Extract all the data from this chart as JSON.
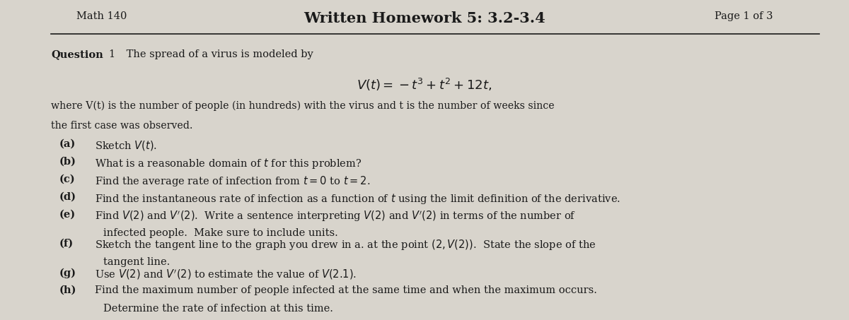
{
  "header_left": "Math 140",
  "header_center": "Written Homework 5: 3.2-3.4",
  "header_right": "Page 1 of 3",
  "bg_color": "#d8d4cc",
  "page_color": "#e8e6e2",
  "text_color": "#1a1a1a",
  "formula": "V(t) = -t^3 + t^2 + 12t,",
  "description_line1": "where V(t) is the number of people (in hundreds) with the virus and t is the number of weeks since",
  "description_line2": "the first case was observed."
}
